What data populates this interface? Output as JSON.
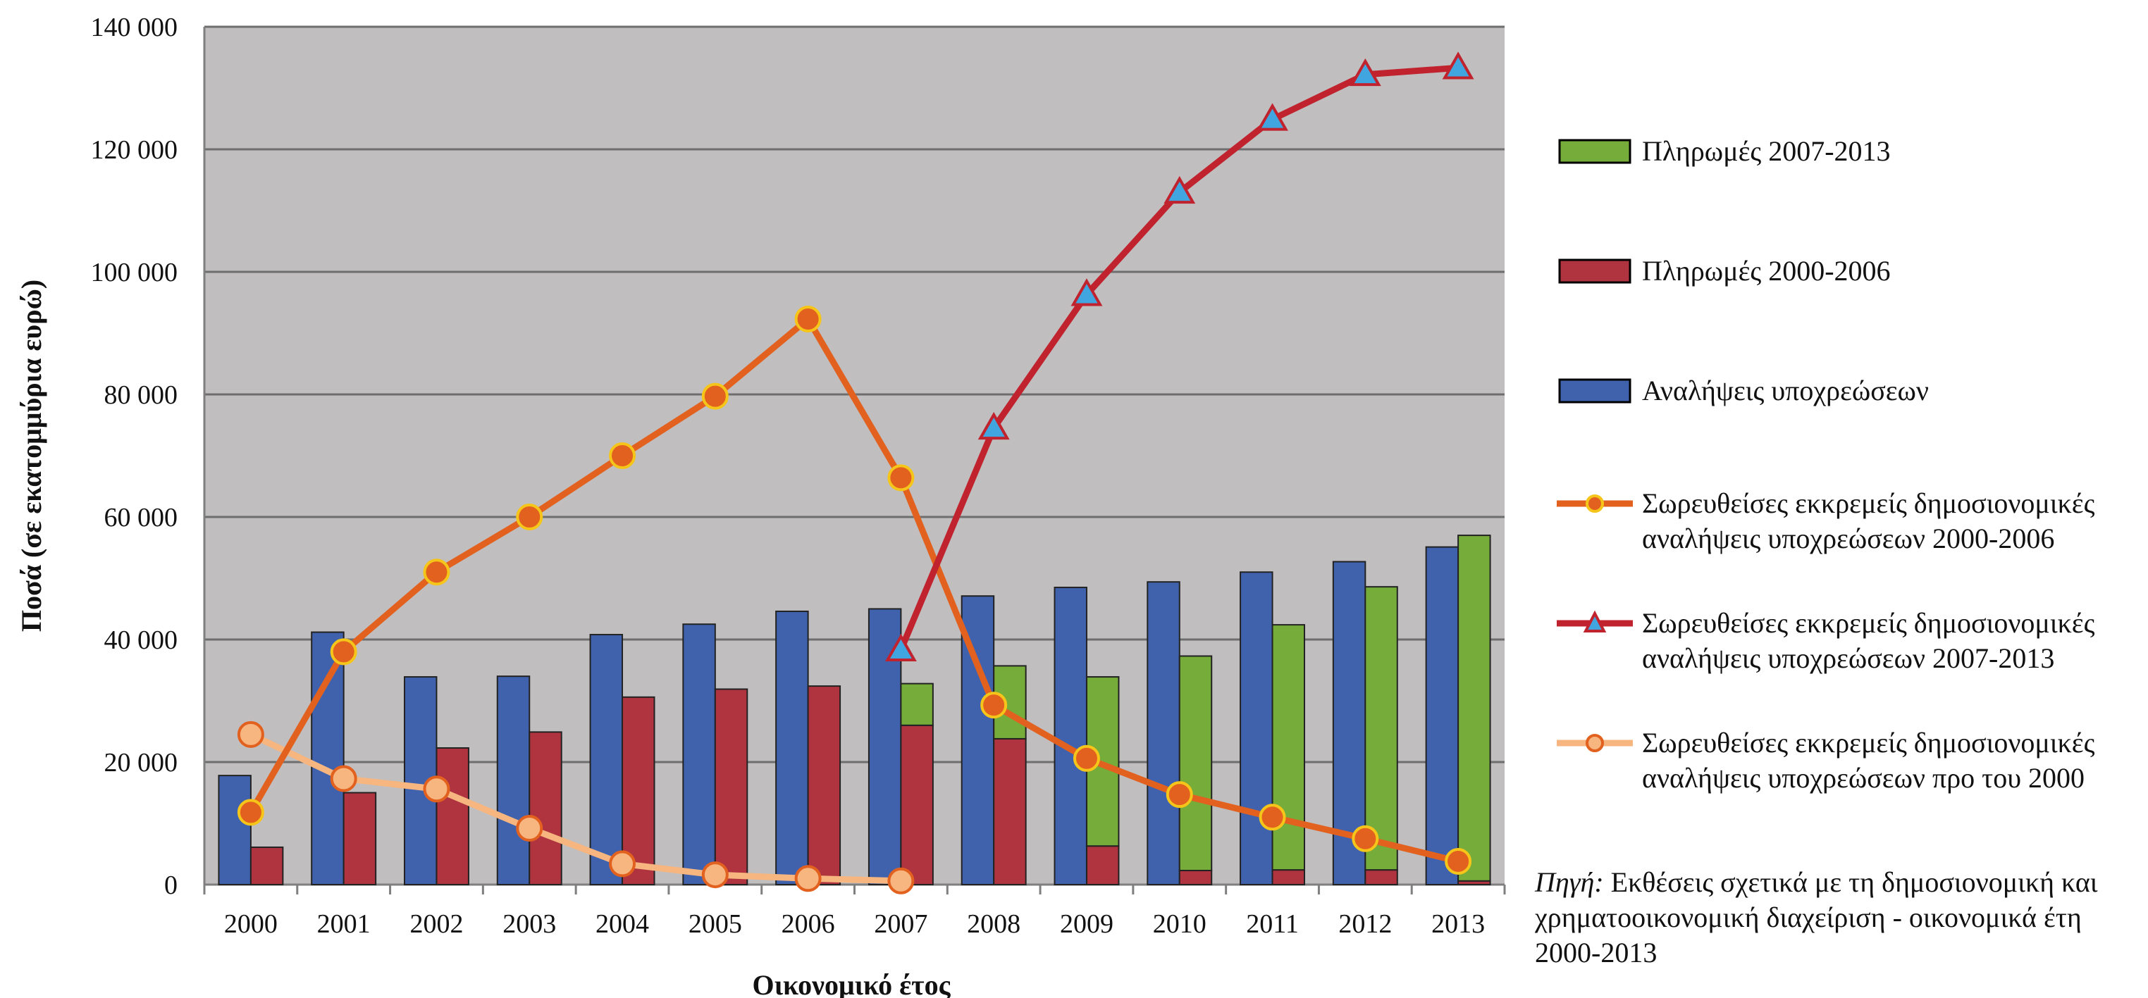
{
  "chart_data": {
    "type": "bar",
    "categories": [
      "2000",
      "2001",
      "2002",
      "2003",
      "2004",
      "2005",
      "2006",
      "2007",
      "2008",
      "2009",
      "2010",
      "2011",
      "2012",
      "2013"
    ],
    "ylim": [
      0,
      140000
    ],
    "yticks": [
      0,
      20000,
      40000,
      60000,
      80000,
      100000,
      120000,
      140000
    ],
    "ytick_labels": [
      "0",
      "20 000",
      "40 000",
      "60 000",
      "80 000",
      "100 000",
      "120 000",
      "140 000"
    ],
    "xlabel": "Οικονομικό έτος",
    "ylabel": "Ποσά (σε εκατομμύρια ευρώ)",
    "grid": true,
    "bar_series": [
      {
        "name": "Αναλήψεις υποχρεώσεων",
        "color": "#4062ad",
        "values": [
          17800,
          41200,
          33900,
          34000,
          40800,
          42500,
          44600,
          45000,
          47100,
          48500,
          49400,
          51000,
          52700,
          55100
        ]
      },
      {
        "name": "Πληρωμές 2000-2006",
        "color": "#b03440",
        "values": [
          6100,
          15000,
          22300,
          24900,
          30600,
          31900,
          32400,
          26000,
          23800,
          6300,
          2300,
          2400,
          2400,
          600
        ]
      },
      {
        "name": "Πληρωμές 2007-2013",
        "color": "#76ac3a",
        "values": [
          0,
          0,
          0,
          0,
          0,
          0,
          0,
          6800,
          11900,
          27600,
          35000,
          40000,
          46200,
          56400
        ]
      }
    ],
    "line_series": [
      {
        "name": "Σωρευθείσες εκκρεμείς δημοσιονομικές αναλήψεις υποχρεώσεων 2000-2006",
        "color": "#e2611f",
        "marker": "circle",
        "values": [
          11800,
          38000,
          51000,
          60000,
          70000,
          79700,
          92300,
          66400,
          29300,
          20600,
          14700,
          11000,
          7500,
          3800
        ]
      },
      {
        "name": "Σωρευθείσες εκκρεμείς δημοσιονομικές αναλήψεις υποχρεώσεων 2007-2013",
        "color": "#c0232e",
        "marker": "triangle",
        "values": [
          null,
          null,
          null,
          null,
          null,
          null,
          null,
          38300,
          74500,
          96300,
          113000,
          124900,
          132200,
          133300
        ]
      },
      {
        "name": "Σωρευθείσες εκκρεμείς δημοσιονομικές αναλήψεις υποχρεώσεων προ του 2000",
        "color": "#f7b680",
        "marker": "circle",
        "values": [
          24500,
          17300,
          15600,
          9200,
          3400,
          1600,
          1000,
          600,
          null,
          null,
          null,
          null,
          null,
          null
        ]
      }
    ]
  },
  "legend": [
    {
      "key": "pay0713",
      "label": "Πληρωμές 2007-2013",
      "color": "#76ac3a"
    },
    {
      "key": "pay0006",
      "label": "Πληρωμές 2000-2006",
      "color": "#b03440"
    },
    {
      "key": "commit",
      "label": "Αναλήψεις υποχρεώσεων",
      "color": "#4062ad"
    },
    {
      "key": "rac0006",
      "label_line1": "Σωρευθείσες εκκρεμείς δημοσιονομικές",
      "label_line2": "αναλήψεις υποχρεώσεων 2000-2006",
      "color": "#e2611f"
    },
    {
      "key": "rac0713",
      "label_line1": "Σωρευθείσες εκκρεμείς δημοσιονομικές",
      "label_line2": "αναλήψεις υποχρεώσεων 2007-2013",
      "color": "#c0232e"
    },
    {
      "key": "racpre",
      "label_line1": "Σωρευθείσες εκκρεμείς δημοσιονομικές",
      "label_line2": "αναλήψεις υποχρεώσεων προ του 2000",
      "color": "#f7b680"
    }
  ],
  "source": {
    "label": "Πηγή:",
    "text": " Εκθέσεις σχετικά με τη δημοσιονομική και χρηματοοικονομική διαχείριση - οικονομικά έτη 2000-2013"
  }
}
